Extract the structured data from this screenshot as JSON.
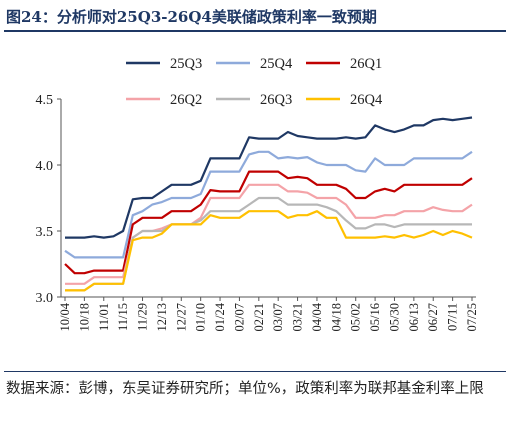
{
  "header": {
    "title": "图24：分析师对25Q3-26Q4美联储政策利率一致预期"
  },
  "footer": {
    "source": "数据来源：彭博，东吴证券研究所；单位%，政策利率为联邦基金利率上限"
  },
  "chart_data": {
    "type": "line",
    "title": "",
    "xlabel": "",
    "ylabel": "",
    "ylim": [
      3.0,
      4.5
    ],
    "yticks": [
      "3.0",
      "3.5",
      "4.0",
      "4.5"
    ],
    "grid": false,
    "legend_position": "top",
    "x": [
      "10/04",
      "10/11",
      "10/18",
      "10/25",
      "11/01",
      "11/08",
      "11/15",
      "11/22",
      "11/29",
      "12/06",
      "12/13",
      "12/20",
      "12/27",
      "01/03",
      "01/10",
      "01/17",
      "01/24",
      "01/31",
      "02/07",
      "02/14",
      "02/21",
      "02/28",
      "03/07",
      "03/14",
      "03/21",
      "03/28",
      "04/04",
      "04/11",
      "04/18",
      "04/25",
      "05/02",
      "05/09",
      "05/16",
      "05/23",
      "05/30",
      "06/06",
      "06/13",
      "06/20",
      "06/27",
      "07/04",
      "07/11",
      "07/18",
      "07/25"
    ],
    "xtick_labels": [
      "10/04",
      "10/18",
      "11/01",
      "11/15",
      "11/29",
      "12/13",
      "12/27",
      "01/10",
      "01/24",
      "02/07",
      "02/21",
      "03/07",
      "03/21",
      "04/04",
      "04/18",
      "05/02",
      "05/16",
      "05/30",
      "06/13",
      "06/27",
      "07/11",
      "07/25"
    ],
    "series": [
      {
        "name": "25Q3",
        "color": "#1f3864",
        "values": [
          3.45,
          3.45,
          3.45,
          3.46,
          3.45,
          3.46,
          3.5,
          3.74,
          3.75,
          3.75,
          3.8,
          3.85,
          3.85,
          3.85,
          3.88,
          4.05,
          4.05,
          4.05,
          4.05,
          4.21,
          4.2,
          4.2,
          4.2,
          4.25,
          4.22,
          4.21,
          4.2,
          4.2,
          4.2,
          4.21,
          4.2,
          4.21,
          4.3,
          4.27,
          4.25,
          4.27,
          4.3,
          4.3,
          4.34,
          4.35,
          4.34,
          4.35,
          4.36
        ]
      },
      {
        "name": "25Q4",
        "color": "#8eaadb",
        "values": [
          3.35,
          3.3,
          3.3,
          3.3,
          3.3,
          3.3,
          3.3,
          3.62,
          3.65,
          3.7,
          3.72,
          3.75,
          3.75,
          3.75,
          3.78,
          3.95,
          3.95,
          3.95,
          3.95,
          4.08,
          4.1,
          4.1,
          4.05,
          4.06,
          4.05,
          4.06,
          4.02,
          4.0,
          4.0,
          4.0,
          3.96,
          3.95,
          4.05,
          4.0,
          4.0,
          4.0,
          4.05,
          4.05,
          4.05,
          4.05,
          4.05,
          4.05,
          4.1
        ]
      },
      {
        "name": "26Q1",
        "color": "#c00000",
        "values": [
          3.25,
          3.18,
          3.18,
          3.2,
          3.2,
          3.2,
          3.2,
          3.55,
          3.6,
          3.6,
          3.6,
          3.65,
          3.65,
          3.65,
          3.7,
          3.81,
          3.8,
          3.8,
          3.8,
          3.95,
          3.95,
          3.95,
          3.95,
          3.9,
          3.91,
          3.9,
          3.85,
          3.85,
          3.85,
          3.82,
          3.75,
          3.75,
          3.8,
          3.82,
          3.8,
          3.85,
          3.85,
          3.85,
          3.85,
          3.85,
          3.85,
          3.85,
          3.9
        ]
      },
      {
        "name": "26Q2",
        "color": "#f4a3a8",
        "values": [
          3.1,
          3.1,
          3.1,
          3.15,
          3.15,
          3.15,
          3.15,
          3.45,
          3.5,
          3.5,
          3.52,
          3.55,
          3.55,
          3.55,
          3.6,
          3.75,
          3.75,
          3.75,
          3.75,
          3.85,
          3.85,
          3.85,
          3.85,
          3.8,
          3.8,
          3.79,
          3.75,
          3.75,
          3.75,
          3.7,
          3.6,
          3.6,
          3.6,
          3.62,
          3.62,
          3.65,
          3.65,
          3.65,
          3.68,
          3.66,
          3.65,
          3.65,
          3.7
        ]
      },
      {
        "name": "26Q3",
        "color": "#b7b7b7",
        "values": [
          3.05,
          3.05,
          3.05,
          3.1,
          3.1,
          3.1,
          3.1,
          3.45,
          3.5,
          3.5,
          3.5,
          3.55,
          3.55,
          3.55,
          3.58,
          3.65,
          3.65,
          3.65,
          3.65,
          3.7,
          3.75,
          3.75,
          3.75,
          3.7,
          3.7,
          3.7,
          3.7,
          3.68,
          3.65,
          3.58,
          3.52,
          3.52,
          3.55,
          3.55,
          3.53,
          3.55,
          3.55,
          3.55,
          3.55,
          3.55,
          3.55,
          3.55,
          3.55
        ]
      },
      {
        "name": "26Q4",
        "color": "#ffc000",
        "values": [
          3.05,
          3.05,
          3.05,
          3.1,
          3.1,
          3.1,
          3.1,
          3.43,
          3.45,
          3.45,
          3.48,
          3.55,
          3.55,
          3.55,
          3.55,
          3.62,
          3.6,
          3.6,
          3.6,
          3.65,
          3.65,
          3.65,
          3.65,
          3.6,
          3.62,
          3.62,
          3.65,
          3.6,
          3.6,
          3.45,
          3.45,
          3.45,
          3.45,
          3.46,
          3.45,
          3.47,
          3.45,
          3.47,
          3.5,
          3.47,
          3.5,
          3.48,
          3.45
        ]
      }
    ]
  }
}
